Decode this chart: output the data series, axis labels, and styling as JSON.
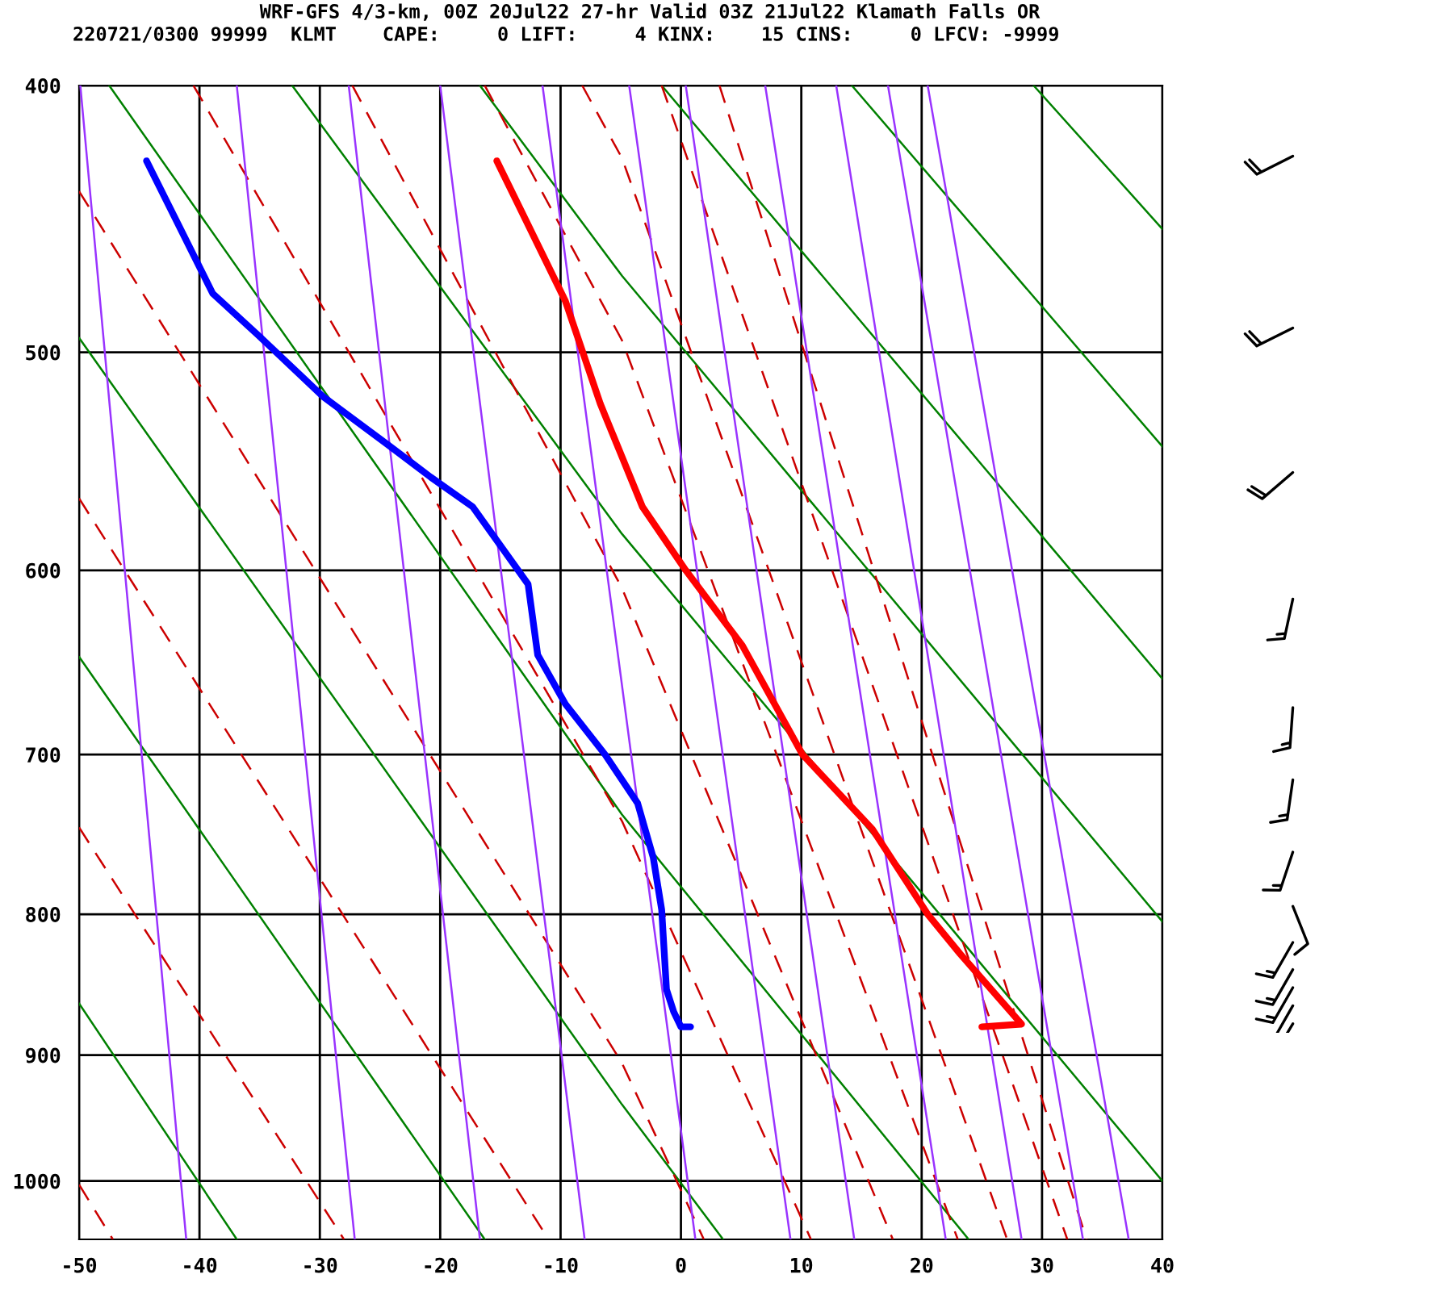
{
  "chart_data": {
    "type": "line",
    "title": "WRF-GFS 4/3-km, 00Z 20Jul22 27-hr Valid 03Z 21Jul22 Klamath Falls OR",
    "subtitle": "220721/0300 99999  KLMT    CAPE:     0 LIFT:     4 KINX:    15 CINS:     0 LFCV: -9999",
    "xlim": [
      -50,
      40
    ],
    "xticks": [
      -50,
      -40,
      -30,
      -20,
      -10,
      0,
      10,
      20,
      30,
      40
    ],
    "ylim": [
      1050,
      400
    ],
    "yticks": [
      400,
      500,
      600,
      700,
      800,
      900,
      1000
    ],
    "grid": true,
    "marker": "none",
    "log": true,
    "series": [
      {
        "color": "#ff0000",
        "line_style": "solid",
        "x": [
          -15.3,
          -9.6,
          -6.7,
          -3.2,
          0.4,
          5.1,
          10.1,
          15.9,
          20.5,
          23.2,
          28.3,
          25.0
        ],
        "values": [
          426,
          479,
          522,
          569,
          600,
          639,
          700,
          745,
          800,
          827,
          877,
          879
        ]
      },
      {
        "color": "#0000ff",
        "line_style": "solid",
        "x": [
          -44.4,
          -38.9,
          -35.1,
          -29.7,
          -24.4,
          -20.8,
          -17.3,
          -12.7,
          -11.9,
          -9.6,
          -6.3,
          -3.6,
          -2.3,
          -1.6,
          -1.2,
          -0.6,
          0.0,
          0.8
        ],
        "values": [
          426,
          476,
          493,
          519,
          540,
          555,
          569,
          607,
          644,
          671,
          700,
          729,
          763,
          797,
          852,
          868,
          879,
          879
        ]
      },
      {
        "color": "#008000",
        "line_style": "solid",
        "x": [
          -47.5,
          -4.9,
          23.9
        ],
        "values": [
          400,
          736,
          1050
        ]
      },
      {
        "color": "#008000",
        "line_style": "solid",
        "x": [
          -32.3,
          -4.9,
          40
        ],
        "values": [
          400,
          582,
          1000
        ]
      },
      {
        "color": "#008000",
        "line_style": "solid",
        "x": [
          -16.7,
          -4.9,
          40
        ],
        "values": [
          400,
          469,
          805
        ]
      },
      {
        "color": "#008000",
        "line_style": "solid",
        "x": [
          -1.6,
          40
        ],
        "values": [
          400,
          657
        ]
      },
      {
        "color": "#008000",
        "line_style": "solid",
        "x": [
          14.2,
          40
        ],
        "values": [
          400,
          541
        ]
      },
      {
        "color": "#008000",
        "line_style": "solid",
        "x": [
          29.3,
          40
        ],
        "values": [
          400,
          451
        ]
      },
      {
        "color": "#008000",
        "line_style": "solid",
        "x": [
          -50,
          -4.9,
          3.5
        ],
        "values": [
          494,
          938,
          1050
        ]
      },
      {
        "color": "#008000",
        "line_style": "solid",
        "x": [
          -50,
          -16.3
        ],
        "values": [
          645,
          1050
        ]
      },
      {
        "color": "#008000",
        "line_style": "solid",
        "x": [
          -50,
          -36.9
        ],
        "values": [
          862,
          1050
        ]
      },
      {
        "color": "#cc0000",
        "line_style": "dashed",
        "x": [
          -8.2,
          -4.9,
          27.1
        ],
        "values": [
          400,
          425,
          1050
        ]
      },
      {
        "color": "#cc0000",
        "line_style": "dashed",
        "x": [
          -16.3,
          -4.9,
          23.0
        ],
        "values": [
          400,
          495,
          1050
        ]
      },
      {
        "color": "#cc0000",
        "line_style": "dashed",
        "x": [
          -27.3,
          -4.9,
          17.6
        ],
        "values": [
          400,
          609,
          1050
        ]
      },
      {
        "color": "#cc0000",
        "line_style": "dashed",
        "x": [
          -40.5,
          -4.9,
          10.8
        ],
        "values": [
          400,
          740,
          1050
        ]
      },
      {
        "color": "#cc0000",
        "line_style": "dashed",
        "x": [
          -50,
          -4.9,
          1.9
        ],
        "values": [
          437,
          906,
          1050
        ]
      },
      {
        "color": "#cc0000",
        "line_style": "dashed",
        "x": [
          -50,
          -11.0
        ],
        "values": [
          565,
          1050
        ]
      },
      {
        "color": "#cc0000",
        "line_style": "dashed",
        "x": [
          -50,
          -28.0
        ],
        "values": [
          744,
          1050
        ]
      },
      {
        "color": "#cc0000",
        "line_style": "dashed",
        "x": [
          -50,
          -47.2
        ],
        "values": [
          1003,
          1050
        ]
      },
      {
        "color": "#cc0000",
        "line_style": "dashed",
        "x": [
          -1.6,
          32.1
        ],
        "values": [
          400,
          1050
        ]
      },
      {
        "color": "#cc0000",
        "line_style": "dashed",
        "x": [
          3.2,
          33.7
        ],
        "values": [
          400,
          1050
        ]
      },
      {
        "color": "#9933ff",
        "line_style": "solid",
        "x": [
          -49.9,
          -41.1
        ],
        "values": [
          400,
          1050
        ]
      },
      {
        "color": "#9933ff",
        "line_style": "solid",
        "x": [
          -36.9,
          -27.1
        ],
        "values": [
          400,
          1050
        ]
      },
      {
        "color": "#9933ff",
        "line_style": "solid",
        "x": [
          -27.6,
          -16.7
        ],
        "values": [
          400,
          1050
        ]
      },
      {
        "color": "#9933ff",
        "line_style": "solid",
        "x": [
          -20.0,
          -8.0
        ],
        "values": [
          400,
          1050
        ]
      },
      {
        "color": "#9933ff",
        "line_style": "solid",
        "x": [
          -11.5,
          1.2
        ],
        "values": [
          400,
          1050
        ]
      },
      {
        "color": "#9933ff",
        "line_style": "solid",
        "x": [
          -4.3,
          9.1
        ],
        "values": [
          400,
          1050
        ]
      },
      {
        "color": "#9933ff",
        "line_style": "solid",
        "x": [
          0.4,
          14.4
        ],
        "values": [
          400,
          1050
        ]
      },
      {
        "color": "#9933ff",
        "line_style": "solid",
        "x": [
          7.0,
          22.0
        ],
        "values": [
          400,
          1050
        ]
      },
      {
        "color": "#9933ff",
        "line_style": "solid",
        "x": [
          12.9,
          28.3
        ],
        "values": [
          400,
          1050
        ]
      },
      {
        "color": "#9933ff",
        "line_style": "solid",
        "x": [
          17.2,
          33.4
        ],
        "values": [
          400,
          1050
        ]
      },
      {
        "color": "#9933ff",
        "line_style": "solid",
        "x": [
          20.5,
          37.2
        ],
        "values": [
          400,
          1050
        ]
      }
    ]
  }
}
